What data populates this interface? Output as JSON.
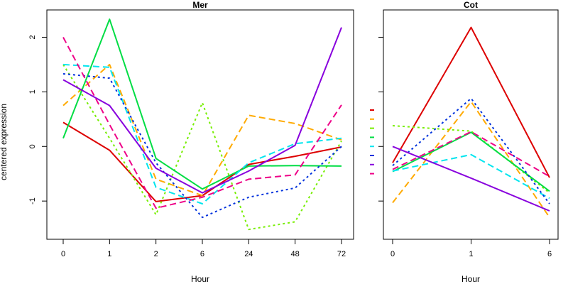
{
  "chart_data": [
    {
      "type": "line",
      "title": "Mer",
      "xlabel": "Hour",
      "ylabel": "centered expression",
      "categories": [
        "0",
        "1",
        "2",
        "6",
        "24",
        "48",
        "72"
      ],
      "ylim": [
        -1.7,
        2.5
      ],
      "yticks": [
        -1,
        0,
        1,
        2
      ],
      "grid": false,
      "series": [
        {
          "color": "#dd0000",
          "dash": "solid",
          "values": [
            0.44,
            -0.07,
            -1.01,
            -0.9,
            -0.33,
            -0.18,
            -0.01
          ]
        },
        {
          "color": "#ffaa00",
          "dash": "dashed",
          "values": [
            0.75,
            1.5,
            -0.6,
            -0.9,
            0.57,
            0.42,
            0.12
          ]
        },
        {
          "color": "#77ee00",
          "dash": "dotted",
          "values": [
            1.5,
            0.15,
            -1.25,
            0.8,
            -1.52,
            -1.38,
            0.1
          ]
        },
        {
          "color": "#00dd44",
          "dash": "solid",
          "values": [
            0.15,
            2.33,
            -0.22,
            -0.78,
            -0.36,
            -0.35,
            -0.36
          ]
        },
        {
          "color": "#00e5ee",
          "dash": "dashed",
          "values": [
            1.5,
            1.45,
            -0.75,
            -1.05,
            -0.3,
            0.05,
            0.15
          ]
        },
        {
          "color": "#0033dd",
          "dash": "dotted",
          "values": [
            1.33,
            1.25,
            -0.3,
            -1.3,
            -0.93,
            -0.76,
            0.0
          ]
        },
        {
          "color": "#8800dd",
          "dash": "solid",
          "values": [
            1.22,
            0.75,
            -0.4,
            -0.85,
            -0.45,
            0.02,
            2.18
          ]
        },
        {
          "color": "#ee0088",
          "dash": "dashed",
          "values": [
            2.0,
            0.4,
            -1.13,
            -0.93,
            -0.6,
            -0.52,
            0.76
          ]
        }
      ]
    },
    {
      "type": "line",
      "title": "Cot",
      "xlabel": "Hour",
      "ylabel": "",
      "categories": [
        "0",
        "1",
        "6"
      ],
      "ylim": [
        -1.7,
        2.5
      ],
      "yticks": [
        -1,
        0,
        1,
        2
      ],
      "grid": false,
      "series": [
        {
          "color": "#dd0000",
          "dash": "solid",
          "values": [
            -0.3,
            2.18,
            -0.57
          ]
        },
        {
          "color": "#ffaa00",
          "dash": "dashed",
          "values": [
            -1.03,
            0.82,
            -1.3
          ]
        },
        {
          "color": "#77ee00",
          "dash": "dotted",
          "values": [
            0.38,
            0.28,
            -0.85
          ]
        },
        {
          "color": "#00dd44",
          "dash": "solid",
          "values": [
            -0.46,
            0.26,
            -0.82
          ]
        },
        {
          "color": "#00e5ee",
          "dash": "dashed",
          "values": [
            -0.45,
            -0.15,
            -0.95
          ]
        },
        {
          "color": "#0033dd",
          "dash": "dotted",
          "values": [
            -0.35,
            0.88,
            -1.05
          ]
        },
        {
          "color": "#8800dd",
          "dash": "solid",
          "values": [
            0.0,
            -0.58,
            -1.18
          ]
        },
        {
          "color": "#ee0088",
          "dash": "dashed",
          "values": [
            -0.42,
            0.27,
            -0.55
          ]
        }
      ]
    }
  ]
}
